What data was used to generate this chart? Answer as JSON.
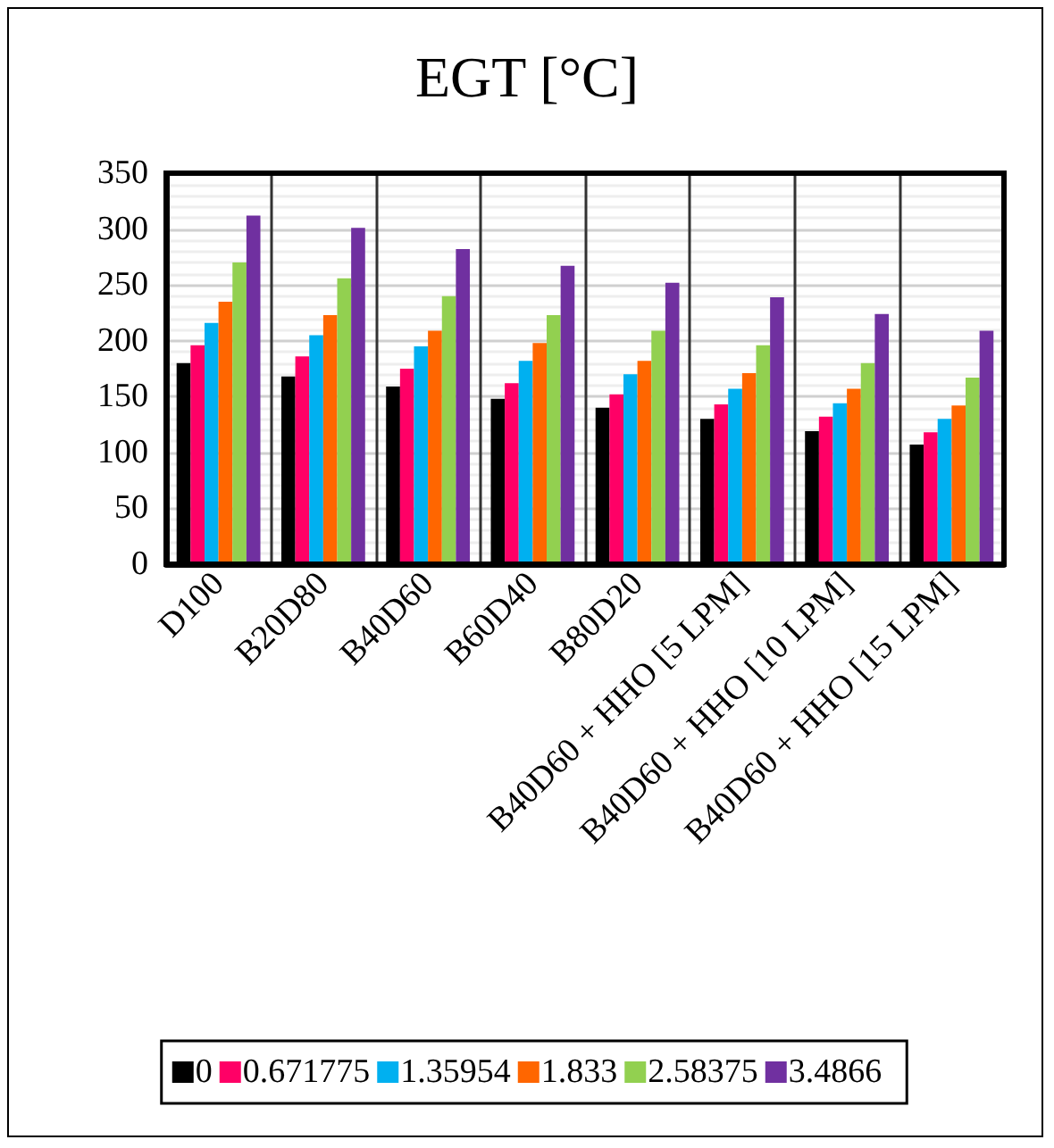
{
  "chart_data": {
    "type": "bar",
    "title": "EGT [°C]",
    "categories": [
      "D100",
      "B20D80",
      "B40D60",
      "B60D40",
      "B80D20",
      "B40D60 + HHO [5 LPM]",
      "B40D60 + HHO [10 LPM]",
      "B40D60 + HHO [15 LPM]"
    ],
    "series": [
      {
        "name": "0",
        "color": "#000000",
        "values": [
          180,
          168,
          159,
          148,
          140,
          130,
          119,
          107
        ]
      },
      {
        "name": "0.671775",
        "color": "#ff0066",
        "values": [
          196,
          186,
          175,
          162,
          152,
          143,
          132,
          118
        ]
      },
      {
        "name": "1.35954",
        "color": "#00b0f0",
        "values": [
          216,
          205,
          195,
          182,
          170,
          157,
          144,
          130
        ]
      },
      {
        "name": "1.833",
        "color": "#ff6600",
        "values": [
          235,
          223,
          209,
          198,
          182,
          171,
          157,
          142
        ]
      },
      {
        "name": "2.58375",
        "color": "#92d050",
        "values": [
          270,
          256,
          240,
          223,
          209,
          196,
          180,
          167
        ]
      },
      {
        "name": "3.4866",
        "color": "#7030a0",
        "values": [
          312,
          301,
          282,
          267,
          252,
          239,
          224,
          209
        ]
      }
    ],
    "ylim": [
      0,
      350
    ],
    "yticks": [
      0,
      50,
      100,
      150,
      200,
      250,
      300,
      350
    ],
    "grid": true,
    "legend": "bottom"
  }
}
